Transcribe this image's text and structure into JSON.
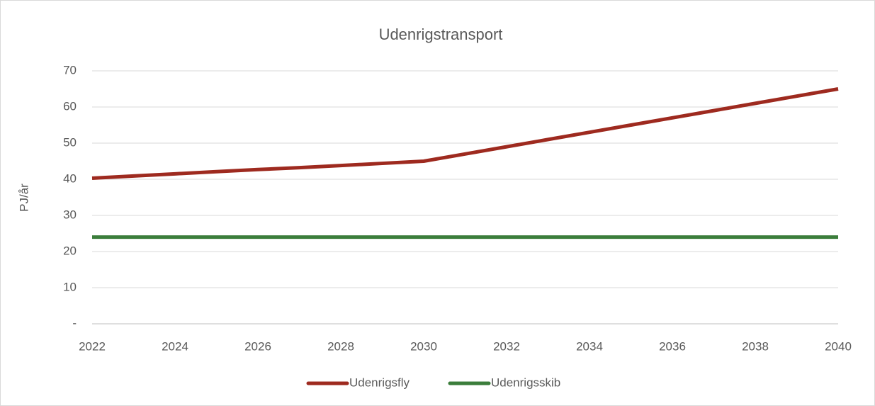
{
  "chart_data": {
    "type": "line",
    "title": "Udenrigstransport",
    "y_label": "PJ/år",
    "x": [
      2022,
      2023,
      2024,
      2025,
      2026,
      2027,
      2028,
      2029,
      2030,
      2031,
      2032,
      2033,
      2034,
      2035,
      2036,
      2037,
      2038,
      2039,
      2040
    ],
    "series": [
      {
        "name": "Udenrigsfly",
        "color": "#9e2a1f",
        "values": [
          40.3,
          40.9,
          41.5,
          42.1,
          42.7,
          43.2,
          43.8,
          44.4,
          45,
          47,
          49,
          51,
          53,
          55,
          57,
          59,
          61,
          63,
          65
        ]
      },
      {
        "name": "Udenrigsskib",
        "color": "#3b7d3b",
        "values": [
          24,
          24,
          24,
          24,
          24,
          24,
          24,
          24,
          24,
          24,
          24,
          24,
          24,
          24,
          24,
          24,
          24,
          24,
          24
        ]
      }
    ],
    "xlim": [
      2022,
      2040
    ],
    "xticks": [
      2022,
      2024,
      2026,
      2028,
      2030,
      2032,
      2034,
      2036,
      2038,
      2040
    ],
    "ylim": [
      0,
      70
    ],
    "yticks": [
      {
        "value": 0,
        "label": "-"
      },
      10,
      20,
      30,
      40,
      50,
      60,
      70
    ],
    "grid": true,
    "legend": "bottom"
  }
}
